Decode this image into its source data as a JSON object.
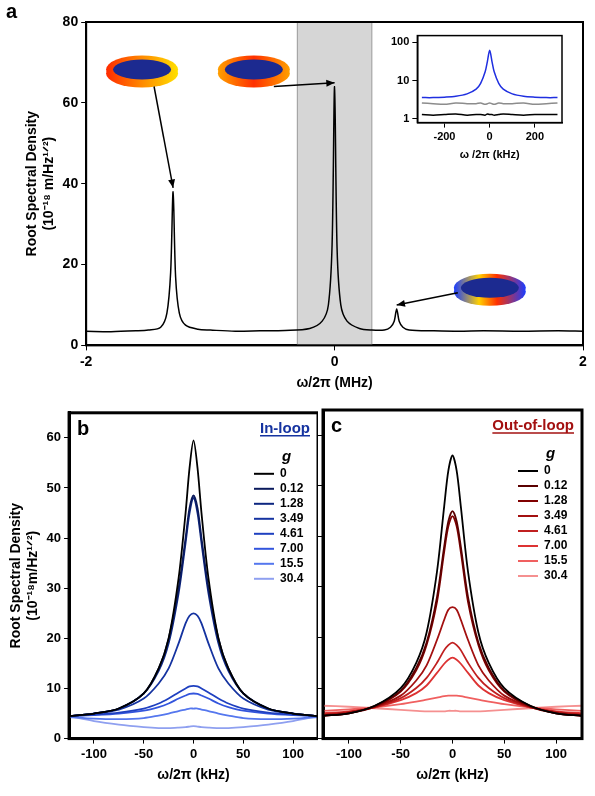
{
  "chart_data": [
    {
      "panel": "a",
      "type": "line",
      "x_label": "ω/2π (MHz)",
      "y_label": "Root Spectral Density (10⁻¹⁸ m/Hz¹ᐟ²)",
      "x": [
        -2,
        -1.8,
        -1.6,
        -1.5,
        -1.4,
        -1.35,
        -1.32,
        -1.3,
        -1.28,
        -1.25,
        -1.2,
        -1.1,
        -1.0,
        -0.8,
        -0.6,
        -0.4,
        -0.2,
        -0.1,
        -0.05,
        -0.02,
        0,
        0.02,
        0.05,
        0.1,
        0.2,
        0.3,
        0.4,
        0.45,
        0.48,
        0.5,
        0.52,
        0.55,
        0.6,
        0.8,
        1.0,
        1.2,
        1.5,
        1.8,
        2.0
      ],
      "series": [
        {
          "color": "#000000",
          "values": [
            3.5,
            3.4,
            3.6,
            3.8,
            4.5,
            8,
            18,
            38,
            17,
            8,
            5,
            4,
            3.8,
            3.5,
            3.6,
            3.7,
            4.2,
            6,
            10,
            25,
            64,
            24,
            10,
            6,
            4.2,
            3.8,
            3.8,
            4.5,
            6,
            9,
            6,
            4.5,
            3.8,
            3.6,
            3.5,
            3.6,
            3.5,
            3.6,
            3.5
          ]
        }
      ],
      "xlim": [
        -2,
        2
      ],
      "xticks": [
        -2,
        0,
        2
      ],
      "ylim": [
        0,
        80
      ],
      "yticks": [
        0,
        20,
        40,
        60,
        80
      ],
      "shaded_x": [
        -0.3,
        0.3
      ],
      "grid": false
    },
    {
      "type": "line",
      "x_label": "ω /2π (kHz)",
      "x": [
        -300,
        -250,
        -200,
        -150,
        -100,
        -60,
        -40,
        -20,
        -10,
        0,
        10,
        20,
        40,
        60,
        100,
        150,
        200,
        250,
        300
      ],
      "series": [
        {
          "color": "#1f2fe0",
          "values": [
            3.6,
            3.6,
            3.7,
            3.9,
            4.5,
            6,
            8.5,
            17,
            32,
            62,
            32,
            17,
            8.5,
            6,
            4.5,
            3.9,
            3.7,
            3.6,
            3.6
          ]
        },
        {
          "color": "#8c8c8c",
          "values": [
            2.6,
            2.5,
            2.4,
            2.6,
            2.5,
            2.5,
            2.6,
            2.4,
            2.5,
            2.6,
            2.5,
            2.4,
            2.6,
            2.5,
            2.5,
            2.6,
            2.4,
            2.5,
            2.6
          ]
        },
        {
          "color": "#000000",
          "values": [
            1.3,
            1.25,
            1.3,
            1.35,
            1.25,
            1.3,
            1.3,
            1.25,
            1.35,
            1.3,
            1.3,
            1.25,
            1.3,
            1.35,
            1.3,
            1.25,
            1.3,
            1.3,
            1.3
          ]
        }
      ],
      "xlim": [
        -320,
        320
      ],
      "xticks": [
        -200,
        0,
        200
      ],
      "ylim": [
        0.8,
        150
      ],
      "yticks": [
        1,
        10,
        100
      ],
      "log": "y",
      "grid": false
    },
    {
      "panel": "b",
      "title": "In-loop",
      "type": "line",
      "x_label": "ω/2π (kHz)",
      "y_label": "Root Spectral Density (10⁻¹⁸m/Hz¹ᐟ²)",
      "legend_title": "g",
      "legend": "upper right",
      "x": [
        -125,
        -100,
        -75,
        -50,
        -35,
        -25,
        -15,
        -8,
        -4,
        0,
        4,
        8,
        15,
        25,
        35,
        50,
        75,
        100,
        125
      ],
      "series": [
        {
          "name": "0",
          "color": "#000000",
          "values": [
            4.5,
            5,
            6,
            9,
            14,
            20,
            32,
            45,
            54,
            59.5,
            54,
            45,
            32,
            20,
            14,
            9,
            6,
            5,
            4.5
          ]
        },
        {
          "name": "0.12",
          "color": "#0a1a5c",
          "values": [
            4.5,
            5,
            6,
            9,
            14,
            20,
            30,
            40,
            46,
            48.5,
            46,
            40,
            30,
            20,
            14,
            9,
            6,
            5,
            4.5
          ]
        },
        {
          "name": "1.28",
          "color": "#0d2680",
          "values": [
            4.5,
            5,
            6,
            9,
            13.5,
            19,
            29,
            39,
            45,
            48,
            45,
            39,
            29,
            19,
            13.5,
            9,
            6,
            5,
            4.5
          ]
        },
        {
          "name": "3.49",
          "color": "#1533a0",
          "values": [
            4.5,
            5,
            5.8,
            8,
            11,
            14,
            19,
            23,
            24.5,
            25,
            24.5,
            23,
            19,
            14,
            11,
            8,
            5.8,
            5,
            4.5
          ]
        },
        {
          "name": "4.61",
          "color": "#1f40c0",
          "values": [
            4.5,
            4.8,
            5.2,
            6,
            7,
            8,
            9.2,
            10,
            10.4,
            10.5,
            10.4,
            10,
            9.2,
            8,
            7,
            6,
            5.2,
            4.8,
            4.5
          ]
        },
        {
          "name": "7.00",
          "color": "#3355dd",
          "values": [
            4.5,
            4.7,
            5,
            5.6,
            6.3,
            7,
            8,
            8.6,
            8.9,
            9,
            8.9,
            8.6,
            8,
            7,
            6.3,
            5.6,
            5,
            4.7,
            4.5
          ]
        },
        {
          "name": "15.5",
          "color": "#5577ee",
          "values": [
            4.3,
            4,
            3.9,
            4.1,
            4.6,
            5,
            5.5,
            5.8,
            6,
            6,
            6,
            5.8,
            5.5,
            5,
            4.6,
            4.1,
            3.9,
            4,
            4.3
          ]
        },
        {
          "name": "30.4",
          "color": "#8fa0f0",
          "values": [
            4.5,
            3.5,
            2.8,
            2.3,
            2.1,
            2.1,
            2.2,
            2.3,
            2.4,
            2.5,
            2.4,
            2.3,
            2.2,
            2.1,
            2.1,
            2.3,
            2.8,
            3.5,
            4.5
          ]
        }
      ],
      "xlim": [
        -125,
        125
      ],
      "xticks": [
        -100,
        -50,
        0,
        50,
        100
      ],
      "ylim": [
        0,
        65
      ],
      "yticks": [
        0,
        10,
        20,
        30,
        40,
        50,
        60
      ],
      "grid": false
    },
    {
      "panel": "c",
      "title": "Out-of-loop",
      "type": "line",
      "x_label": "ω/2π (kHz)",
      "legend_title": "g",
      "legend": "upper right",
      "tick_labels": "x",
      "x": [
        -125,
        -100,
        -75,
        -50,
        -35,
        -25,
        -15,
        -8,
        -4,
        0,
        4,
        8,
        15,
        25,
        35,
        50,
        75,
        100,
        125
      ],
      "series": [
        {
          "name": "0",
          "color": "#000000",
          "values": [
            4.5,
            5,
            6.5,
            10,
            15,
            21,
            33,
            46,
            53,
            56,
            53,
            46,
            33,
            21,
            15,
            10,
            6.5,
            5,
            4.5
          ]
        },
        {
          "name": "0.12",
          "color": "#5a0000",
          "values": [
            4.5,
            5,
            6.5,
            9.5,
            14,
            19,
            28,
            38,
            43,
            45,
            43,
            38,
            28,
            19,
            14,
            9.5,
            6.5,
            5,
            4.5
          ]
        },
        {
          "name": "1.28",
          "color": "#800000",
          "values": [
            4.5,
            5,
            6.3,
            9.3,
            13.5,
            18.5,
            27,
            37,
            42,
            44,
            42,
            37,
            27,
            18.5,
            13.5,
            9.3,
            6.3,
            5,
            4.5
          ]
        },
        {
          "name": "3.49",
          "color": "#a31010",
          "values": [
            4.6,
            5.2,
            6.3,
            8.5,
            11.5,
            14.5,
            19.5,
            23.5,
            25.5,
            26,
            25.5,
            23.5,
            19.5,
            14.5,
            11.5,
            8.5,
            6.3,
            5.2,
            4.6
          ]
        },
        {
          "name": "4.61",
          "color": "#c02020",
          "values": [
            4.8,
            5.3,
            6.2,
            8,
            10,
            12,
            15,
            17.5,
            18.5,
            19,
            18.5,
            17.5,
            15,
            12,
            10,
            8,
            6.2,
            5.3,
            4.8
          ]
        },
        {
          "name": "7.00",
          "color": "#dd3333",
          "values": [
            5,
            5.4,
            6.2,
            7.6,
            9,
            10.5,
            13,
            14.8,
            15.6,
            16,
            15.6,
            14.8,
            13,
            10.5,
            9,
            7.6,
            6.2,
            5.4,
            5
          ]
        },
        {
          "name": "15.5",
          "color": "#f06060",
          "values": [
            5.5,
            5.8,
            6.2,
            6.8,
            7.3,
            7.7,
            8.1,
            8.4,
            8.5,
            8.5,
            8.5,
            8.4,
            8.1,
            7.7,
            7.3,
            6.8,
            6.2,
            5.8,
            5.5
          ]
        },
        {
          "name": "30.4",
          "color": "#f59090",
          "values": [
            6.5,
            6.3,
            6,
            5.7,
            5.5,
            5.4,
            5.4,
            5.4,
            5.5,
            5.5,
            5.5,
            5.4,
            5.4,
            5.4,
            5.5,
            5.7,
            6,
            6.3,
            6.5
          ]
        }
      ],
      "xlim": [
        -125,
        125
      ],
      "xticks": [
        -100,
        -50,
        0,
        50,
        100
      ],
      "ylim": [
        0,
        65
      ],
      "yticks": [
        0,
        10,
        20,
        30,
        40,
        50,
        60
      ],
      "grid": false
    }
  ]
}
